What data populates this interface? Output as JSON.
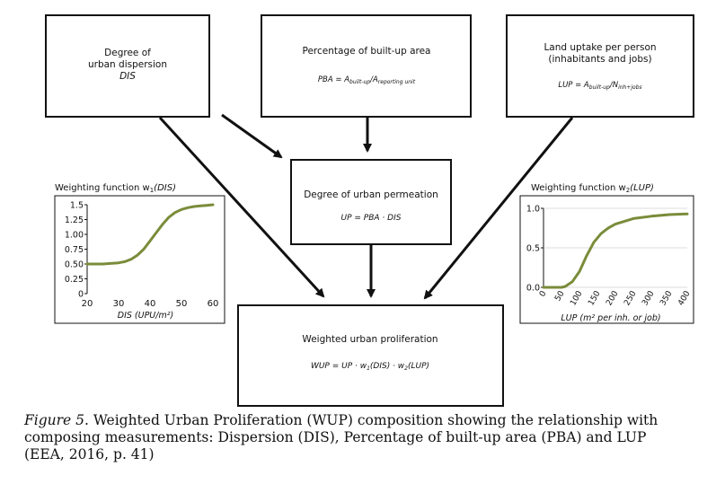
{
  "boxes": {
    "dis": {
      "line1": "Degree of",
      "line2": "urban dispersion",
      "symbol": "DIS"
    },
    "pba": {
      "title": "Percentage of built-up area",
      "formula_lhs": "PBA = A",
      "formula_sub1": "built-up",
      "formula_mid": "/A",
      "formula_sub2": "reporting unit"
    },
    "lup": {
      "line1": "Land uptake per person",
      "line2": "(inhabitants and jobs)",
      "formula_lhs": "LUP = A",
      "formula_sub1": "built-up",
      "formula_mid": "/N",
      "formula_sub2": "inh+jobs"
    },
    "up": {
      "title": "Degree of urban permeation",
      "formula": "UP = PBA · DIS"
    },
    "wup": {
      "title": "Weighted urban proliferation",
      "formula_a": "WUP = UP · w",
      "sub_a": "1",
      "formula_b": "(DIS) · w",
      "sub_b": "2",
      "formula_c": "(LUP)"
    }
  },
  "chart_data": [
    {
      "type": "line",
      "title_prefix": "Weighting function w",
      "title_sub": "1",
      "title_arg": "(DIS)",
      "xlabel": "DIS (UPU/m²)",
      "x_ticks": [
        "20",
        "30",
        "40",
        "50",
        "60"
      ],
      "y_ticks": [
        "0",
        "0.25",
        "0.50",
        "0.75",
        "1.00",
        "1.25",
        "1.5"
      ],
      "xlim": [
        20,
        60
      ],
      "ylim": [
        0,
        1.5
      ],
      "line_color": "#7a8c3a",
      "x": [
        20,
        25,
        30,
        32,
        34,
        36,
        38,
        40,
        42,
        44,
        46,
        48,
        50,
        52,
        54,
        56,
        58,
        60
      ],
      "y": [
        0.5,
        0.5,
        0.52,
        0.54,
        0.58,
        0.65,
        0.75,
        0.89,
        1.03,
        1.17,
        1.29,
        1.37,
        1.42,
        1.45,
        1.47,
        1.48,
        1.49,
        1.5
      ]
    },
    {
      "type": "line",
      "title_prefix": "Weighting function w",
      "title_sub": "2",
      "title_arg": "(LUP)",
      "xlabel": "LUP (m² per inh. or job)",
      "x_ticks": [
        "0",
        "50",
        "100",
        "150",
        "200",
        "250",
        "300",
        "350",
        "400"
      ],
      "y_ticks": [
        "0.0",
        "0.5",
        "1.0"
      ],
      "xlim": [
        0,
        400
      ],
      "ylim": [
        0,
        1.0
      ],
      "line_color": "#7a8c3a",
      "x": [
        0,
        50,
        60,
        80,
        100,
        120,
        140,
        160,
        180,
        200,
        250,
        300,
        350,
        400
      ],
      "y": [
        0,
        0,
        0.01,
        0.07,
        0.2,
        0.4,
        0.57,
        0.68,
        0.75,
        0.8,
        0.87,
        0.9,
        0.92,
        0.93
      ]
    }
  ],
  "caption": {
    "fig_label": "Figure 5",
    "text": ". Weighted Urban Proliferation (WUP) composition showing the relationship with composing measurements: Dispersion (DIS), Percentage of built-up area (PBA) and LUP (EEA, 2016, p. 41)"
  }
}
